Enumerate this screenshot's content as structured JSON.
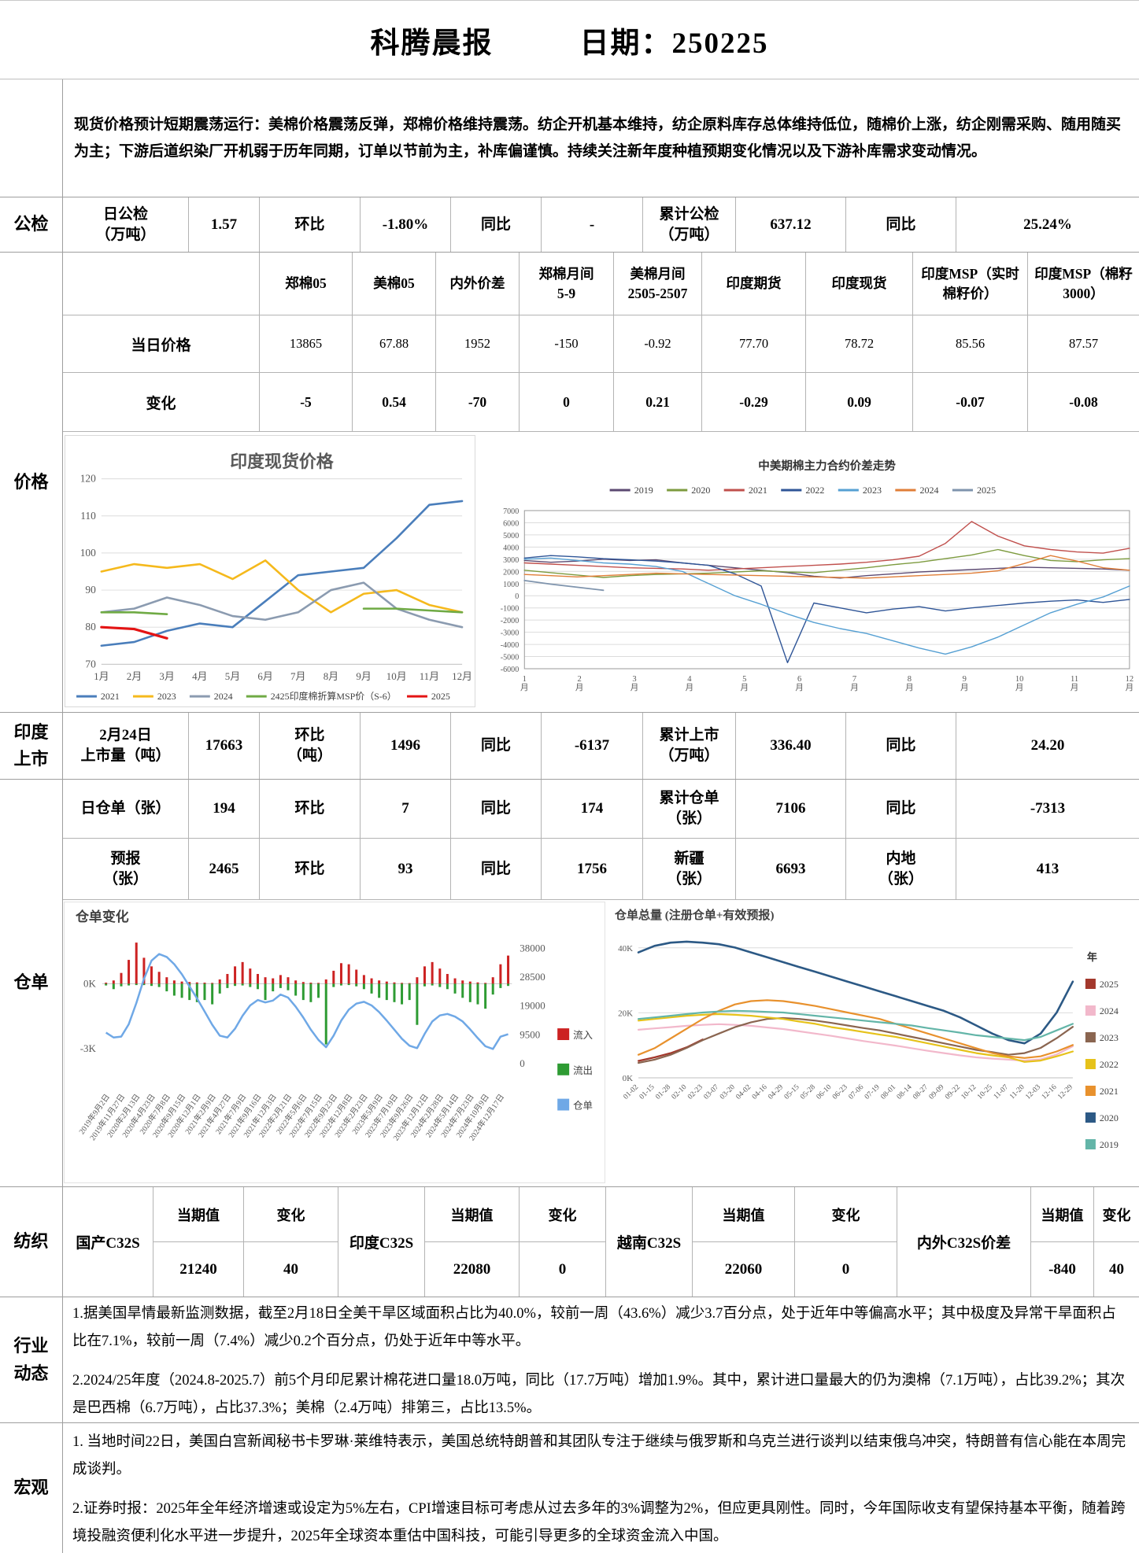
{
  "header": {
    "title": "科腾晨报",
    "date": "日期：250225"
  },
  "summary": {
    "lead": "现货价格预计短期震荡运行：",
    "body": "美棉价格震荡反弹，郑棉价格维持震荡。纺企开机基本维持，纺企原料库存总体维持低位，随棉价上涨，纺企刚需采购、随用随买为主；下游后道织染厂开机弱于历年同期，订单以节前为主，补库偏谨慎。持续关注新年度种植预期变化情况以及下游补库需求变动情况。"
  },
  "gongjian": {
    "section": "公检",
    "cells": [
      "日公检\n（万吨）",
      "1.57",
      "环比",
      "-1.80%",
      "同比",
      "-",
      "累计公检\n（万吨）",
      "637.12",
      "同比",
      "25.24%"
    ]
  },
  "price": {
    "section": "价格",
    "columns": [
      "郑棉05",
      "美棉05",
      "内外价差",
      "郑棉月间\n5-9",
      "美棉月间\n2505-2507",
      "印度期货",
      "印度现货",
      "印度MSP（实时\n棉籽价）",
      "印度MSP（棉籽\n3000）"
    ],
    "rows": [
      {
        "label": "当日价格",
        "values": [
          "13865",
          "67.88",
          "1952",
          "-150",
          "-0.92",
          "77.70",
          "78.72",
          "85.56",
          "87.57"
        ]
      },
      {
        "label": "变化",
        "values": [
          "-5",
          "0.54",
          "-70",
          "0",
          "0.21",
          "-0.29",
          "0.09",
          "-0.07",
          "-0.08"
        ]
      }
    ]
  },
  "india": {
    "section": "印度\n上市",
    "cells": [
      "2月24日\n上市量（吨）",
      "17663",
      "环比\n（吨）",
      "1496",
      "同比",
      "-6137",
      "累计上市\n（万吨）",
      "336.40",
      "同比",
      "24.20"
    ]
  },
  "warehouse": {
    "section": "仓单",
    "rows": [
      {
        "cells": [
          "日仓单（张）",
          "194",
          "环比",
          "7",
          "同比",
          "174",
          "累计仓单\n（张）",
          "7106",
          "同比",
          "-7313"
        ]
      },
      {
        "cells": [
          "预报\n（张）",
          "2465",
          "环比",
          "93",
          "同比",
          "1756",
          "新疆\n（张）",
          "6693",
          "内地\n（张）",
          "413"
        ]
      }
    ]
  },
  "textile": {
    "section": "纺织",
    "col_current": "当期值",
    "col_change": "变化",
    "groups": [
      {
        "name": "国产C32S",
        "current": "21240",
        "change": "40"
      },
      {
        "name": "印度C32S",
        "current": "22080",
        "change": "0"
      },
      {
        "name": "越南C32S",
        "current": "22060",
        "change": "0"
      },
      {
        "name": "内外C32S价差",
        "current": "-840",
        "change": "40"
      }
    ]
  },
  "industry": {
    "section": "行业\n动态",
    "items": [
      "1.据美国旱情最新监测数据，截至2月18日全美干旱区域面积占比为40.0%，较前一周（43.6%）减少3.7百分点，处于近年中等偏高水平；其中极度及异常干旱面积占比在7.1%，较前一周（7.4%）减少0.2个百分点，仍处于近年中等水平。",
      "2.2024/25年度（2024.8-2025.7）前5个月印尼累计棉花进口量18.0万吨，同比（17.7万吨）增加1.9%。其中，累计进口量最大的仍为澳棉（7.1万吨），占比39.2%；其次是巴西棉（6.7万吨），占比37.3%；美棉（2.4万吨）排第三，占比13.5%。"
    ]
  },
  "macro": {
    "section": "宏观",
    "items": [
      "1. 当地时间22日，美国白宫新闻秘书卡罗琳·莱维特表示，美国总统特朗普和其团队专注于继续与俄罗斯和乌克兰进行谈判以结束俄乌冲突，特朗普有信心能在本周完成谈判。",
      "2.证券时报：2025年全年经济增速或设定为5%左右，CPI增速目标可考虑从过去多年的3%调整为2%，但应更具刚性。同时，今年国际收支有望保持基本平衡，随着跨境投融资便利化水平进一步提升，2025年全球资本重估中国科技，可能引导更多的全球资金流入中国。"
    ]
  },
  "chart_data": [
    {
      "type": "line",
      "title": "印度现货价格",
      "x_labels": [
        "1月",
        "2月",
        "3月",
        "4月",
        "5月",
        "6月",
        "7月",
        "8月",
        "9月",
        "10月",
        "11月",
        "12月"
      ],
      "ylim": [
        70,
        120
      ],
      "yticks": [
        70,
        80,
        90,
        100,
        110,
        120
      ],
      "grid": true,
      "legend_position": "bottom",
      "series": [
        {
          "name": "2021",
          "color": "#4a7ebb",
          "width": 2.6,
          "values": [
            75,
            76,
            79,
            81,
            80,
            87,
            94,
            95,
            96,
            104,
            113,
            114
          ]
        },
        {
          "name": "2023",
          "color": "#f5b91c",
          "width": 2.6,
          "values": [
            95,
            97,
            96,
            97,
            93,
            98,
            90,
            84,
            89,
            90,
            86,
            84
          ]
        },
        {
          "name": "2024",
          "color": "#8b9bb0",
          "width": 2.6,
          "values": [
            84,
            85,
            88,
            86,
            83,
            82,
            84,
            90,
            92,
            85,
            82,
            80
          ]
        },
        {
          "name": "2425印度棉折算MSP价（S-6）",
          "color": "#6faa44",
          "width": 2.6,
          "values": [
            84,
            84,
            83.5,
            null,
            null,
            null,
            null,
            null,
            85,
            85,
            84.5,
            84
          ]
        },
        {
          "name": "2025",
          "color": "#e41414",
          "width": 3.2,
          "values": [
            80,
            79.5,
            77,
            null,
            null,
            null,
            null,
            null,
            null,
            null,
            null,
            null
          ]
        }
      ]
    },
    {
      "type": "line",
      "title": "中美期棉主力合约价差走势",
      "x_labels": [
        "1月",
        "2月",
        "3月",
        "4月",
        "5月",
        "6月",
        "7月",
        "8月",
        "9月",
        "10月",
        "11月",
        "12月"
      ],
      "ylim": [
        -6000,
        7000
      ],
      "yticks": [
        7000,
        6000,
        5000,
        4000,
        3000,
        2000,
        1000,
        0,
        -1000,
        -2000,
        -3000,
        -4000,
        -5000,
        -6000
      ],
      "grid": true,
      "legend_position": "top",
      "series": [
        {
          "name": "2019",
          "color": "#5c4a72",
          "width": 1.4,
          "values": [
            2900,
            2750,
            2850,
            3000,
            2900,
            2950,
            2700,
            2500,
            2300,
            2100,
            1900,
            1600,
            1450,
            1650,
            1800,
            1950,
            2050,
            2150,
            2250,
            2350,
            2300,
            2250,
            2200,
            2100
          ]
        },
        {
          "name": "2020",
          "color": "#7d9b3f",
          "width": 1.4,
          "values": [
            2100,
            1900,
            1700,
            1500,
            1650,
            1750,
            1800,
            1850,
            1950,
            2050,
            1950,
            1900,
            2100,
            2300,
            2550,
            2750,
            3050,
            3350,
            3800,
            3300,
            2900,
            2800,
            2950,
            3050
          ]
        },
        {
          "name": "2021",
          "color": "#c0504d",
          "width": 1.4,
          "values": [
            2700,
            2600,
            2500,
            2400,
            2300,
            2250,
            2200,
            2100,
            2200,
            2300,
            2400,
            2500,
            2600,
            2750,
            2950,
            3250,
            4300,
            6100,
            4900,
            4100,
            3800,
            3600,
            3500,
            3900
          ]
        },
        {
          "name": "2022",
          "color": "#2f5597",
          "width": 1.4,
          "values": [
            3100,
            3300,
            3200,
            3050,
            2950,
            2850,
            2700,
            2500,
            1800,
            800,
            -5500,
            -600,
            -1000,
            -1400,
            -1100,
            -900,
            -1250,
            -1000,
            -800,
            -600,
            -450,
            -350,
            -550,
            -300
          ]
        },
        {
          "name": "2023",
          "color": "#56a0d3",
          "width": 1.4,
          "values": [
            3000,
            3100,
            2900,
            2700,
            2600,
            2400,
            2000,
            1000,
            0,
            -700,
            -1500,
            -2200,
            -2700,
            -3100,
            -3700,
            -4300,
            -4800,
            -4200,
            -3400,
            -2400,
            -1400,
            -700,
            -100,
            800
          ]
        },
        {
          "name": "2024",
          "color": "#e07e38",
          "width": 1.4,
          "values": [
            1750,
            1650,
            1550,
            1650,
            1750,
            1850,
            1800,
            1750,
            1700,
            1650,
            1600,
            1550,
            1500,
            1450,
            1550,
            1650,
            1750,
            1850,
            2050,
            2650,
            3300,
            2850,
            2300,
            2100
          ]
        },
        {
          "name": "2025",
          "color": "#7f94ad",
          "width": 1.8,
          "values": [
            1250,
            950,
            700,
            450,
            null,
            null,
            null,
            null,
            null,
            null,
            null,
            null,
            null,
            null,
            null,
            null,
            null,
            null,
            null,
            null,
            null,
            null,
            null,
            null
          ]
        }
      ]
    },
    {
      "type": "bar-line",
      "title": "仓单变化",
      "x_labels": [
        "2019年9月2日",
        "2019年11月27日",
        "2020年2月13日",
        "2020年4月23日",
        "2020年7月8日",
        "2020年9月15日",
        "2020年12月1日",
        "2021年2月9日",
        "2021年4月27日",
        "2021年7月9日",
        "2021年9月16日",
        "2021年12月3日",
        "2022年2月21日",
        "2022年5月6日",
        "2022年7月15日",
        "2022年9月23日",
        "2022年12月8日",
        "2023年2月23日",
        "2023年5月9日",
        "2023年7月19日",
        "2023年9月26日",
        "2023年12月12日",
        "2024年2月28日",
        "2024年5月14日",
        "2024年7月23日",
        "2024年10月9日",
        "2024年12月17日"
      ],
      "left_ticks": [
        {
          "label": "0K",
          "v": 0
        },
        {
          "label": "-3K",
          "v": -3000
        }
      ],
      "right_ticks": [
        38000,
        28500,
        19000,
        9500,
        0
      ],
      "legend_position": "right",
      "bar_series": [
        {
          "name": "流入",
          "color": "#cc2222",
          "values": [
            50,
            150,
            500,
            1100,
            1900,
            1200,
            800,
            550,
            300,
            150,
            100,
            80,
            60,
            50,
            40,
            200,
            450,
            800,
            1000,
            700,
            450,
            300,
            250,
            400,
            300,
            150,
            80,
            50,
            40,
            200,
            600,
            950,
            900,
            650,
            400,
            250,
            150,
            100,
            60,
            40,
            30,
            300,
            800,
            1000,
            700,
            450,
            250,
            150,
            100,
            60,
            40,
            300,
            900,
            1300
          ]
        },
        {
          "name": "流出",
          "color": "#2e9b33",
          "values": [
            -80,
            -250,
            -120,
            -80,
            -60,
            -60,
            -100,
            -150,
            -350,
            -550,
            -650,
            -750,
            -850,
            -750,
            -950,
            -450,
            -200,
            -100,
            -80,
            -150,
            -250,
            -750,
            -350,
            -200,
            -300,
            -550,
            -750,
            -850,
            -650,
            -2800,
            -150,
            -80,
            -60,
            -120,
            -250,
            -450,
            -650,
            -750,
            -850,
            -950,
            -750,
            -1900,
            -120,
            -80,
            -150,
            -250,
            -450,
            -650,
            -850,
            -950,
            -1150,
            -500,
            -200,
            -100
          ]
        }
      ],
      "line_series": {
        "name": "仓单",
        "color": "#6fa8e6",
        "values": [
          10200,
          8600,
          8900,
          13000,
          20000,
          28000,
          34000,
          36200,
          35200,
          32800,
          29500,
          25500,
          21500,
          17200,
          12800,
          9200,
          8600,
          11500,
          15800,
          19200,
          21000,
          20200,
          20800,
          22800,
          21800,
          18800,
          15200,
          11200,
          7800,
          5400,
          9200,
          14200,
          17800,
          19800,
          20400,
          19200,
          17000,
          14200,
          11200,
          8200,
          5900,
          5100,
          9800,
          13900,
          15900,
          16400,
          15500,
          13900,
          11300,
          8400,
          5700,
          4800,
          8900,
          9700
        ]
      }
    },
    {
      "type": "line",
      "title": "仓单总量 (注册仓单+有效预报)",
      "x_labels": [
        "01-02",
        "01-15",
        "01-28",
        "02-10",
        "02-23",
        "03-07",
        "03-20",
        "04-02",
        "04-16",
        "04-29",
        "05-15",
        "05-28",
        "06-10",
        "06-23",
        "07-06",
        "07-19",
        "08-01",
        "08-14",
        "08-27",
        "09-09",
        "09-22",
        "10-12",
        "10-25",
        "11-07",
        "11-20",
        "12-03",
        "12-16",
        "12-29"
      ],
      "ylim": [
        0,
        46000
      ],
      "yticks": [
        {
          "v": 0,
          "label": "0K"
        },
        {
          "v": 20000,
          "label": "20K"
        },
        {
          "v": 40000,
          "label": "40K"
        }
      ],
      "grid": true,
      "legend_position": "right",
      "legend_title": "年",
      "series": [
        {
          "name": "2025",
          "color": "#a3382c",
          "width": 2.2,
          "values": [
            5200,
            6300,
            7600,
            9400,
            11800,
            null,
            null,
            null,
            null,
            null,
            null,
            null,
            null,
            null,
            null,
            null,
            null,
            null,
            null,
            null,
            null,
            null,
            null,
            null,
            null,
            null,
            null,
            null
          ]
        },
        {
          "name": "2024",
          "color": "#f2b8cb",
          "width": 2.2,
          "values": [
            14800,
            15200,
            15600,
            16000,
            16300,
            16500,
            16300,
            16000,
            15500,
            15000,
            14300,
            13600,
            12900,
            12100,
            11300,
            10600,
            9900,
            9100,
            8300,
            7600,
            6900,
            6300,
            5900,
            5600,
            5300,
            5700,
            7200,
            9700
          ]
        },
        {
          "name": "2023",
          "color": "#8a6550",
          "width": 2.2,
          "values": [
            4600,
            5600,
            7100,
            9200,
            11600,
            13600,
            15600,
            17100,
            18100,
            18400,
            18100,
            17600,
            16900,
            16100,
            15300,
            14600,
            13600,
            12600,
            11600,
            10600,
            9600,
            8600,
            7900,
            7100,
            7600,
            9200,
            12200,
            15700
          ]
        },
        {
          "name": "2022",
          "color": "#e6c21a",
          "width": 2.2,
          "values": [
            17600,
            18100,
            18600,
            19100,
            19400,
            19600,
            19400,
            19100,
            18600,
            18100,
            17300,
            16600,
            15600,
            14900,
            14100,
            13300,
            12600,
            11600,
            10600,
            9600,
            8600,
            7600,
            6900,
            6300,
            4900,
            5300,
            6600,
            8100
          ]
        },
        {
          "name": "2021",
          "color": "#e8912d",
          "width": 2.2,
          "values": [
            7100,
            9100,
            12100,
            15100,
            18100,
            20600,
            22600,
            23600,
            23900,
            23600,
            22900,
            22100,
            21100,
            20100,
            19100,
            18100,
            16600,
            15100,
            13600,
            12100,
            10600,
            9100,
            7600,
            6600,
            6100,
            6600,
            8100,
            10100
          ]
        },
        {
          "name": "2020",
          "color": "#2c5985",
          "width": 2.6,
          "values": [
            38600,
            40600,
            41600,
            41900,
            41600,
            41100,
            40100,
            38600,
            37100,
            35600,
            34100,
            32600,
            31100,
            29600,
            28100,
            26600,
            25100,
            23600,
            22100,
            20600,
            18600,
            16100,
            13600,
            11600,
            10600,
            13600,
            20100,
            29600
          ]
        },
        {
          "name": "2019",
          "color": "#63b5a8",
          "width": 2.2,
          "values": [
            18100,
            18600,
            19100,
            19600,
            20100,
            20400,
            20600,
            20500,
            20300,
            20100,
            19600,
            19100,
            18600,
            18100,
            17600,
            17100,
            16600,
            16100,
            15300,
            14600,
            13900,
            13100,
            12600,
            12100,
            11600,
            12600,
            14600,
            16600
          ]
        }
      ]
    }
  ]
}
